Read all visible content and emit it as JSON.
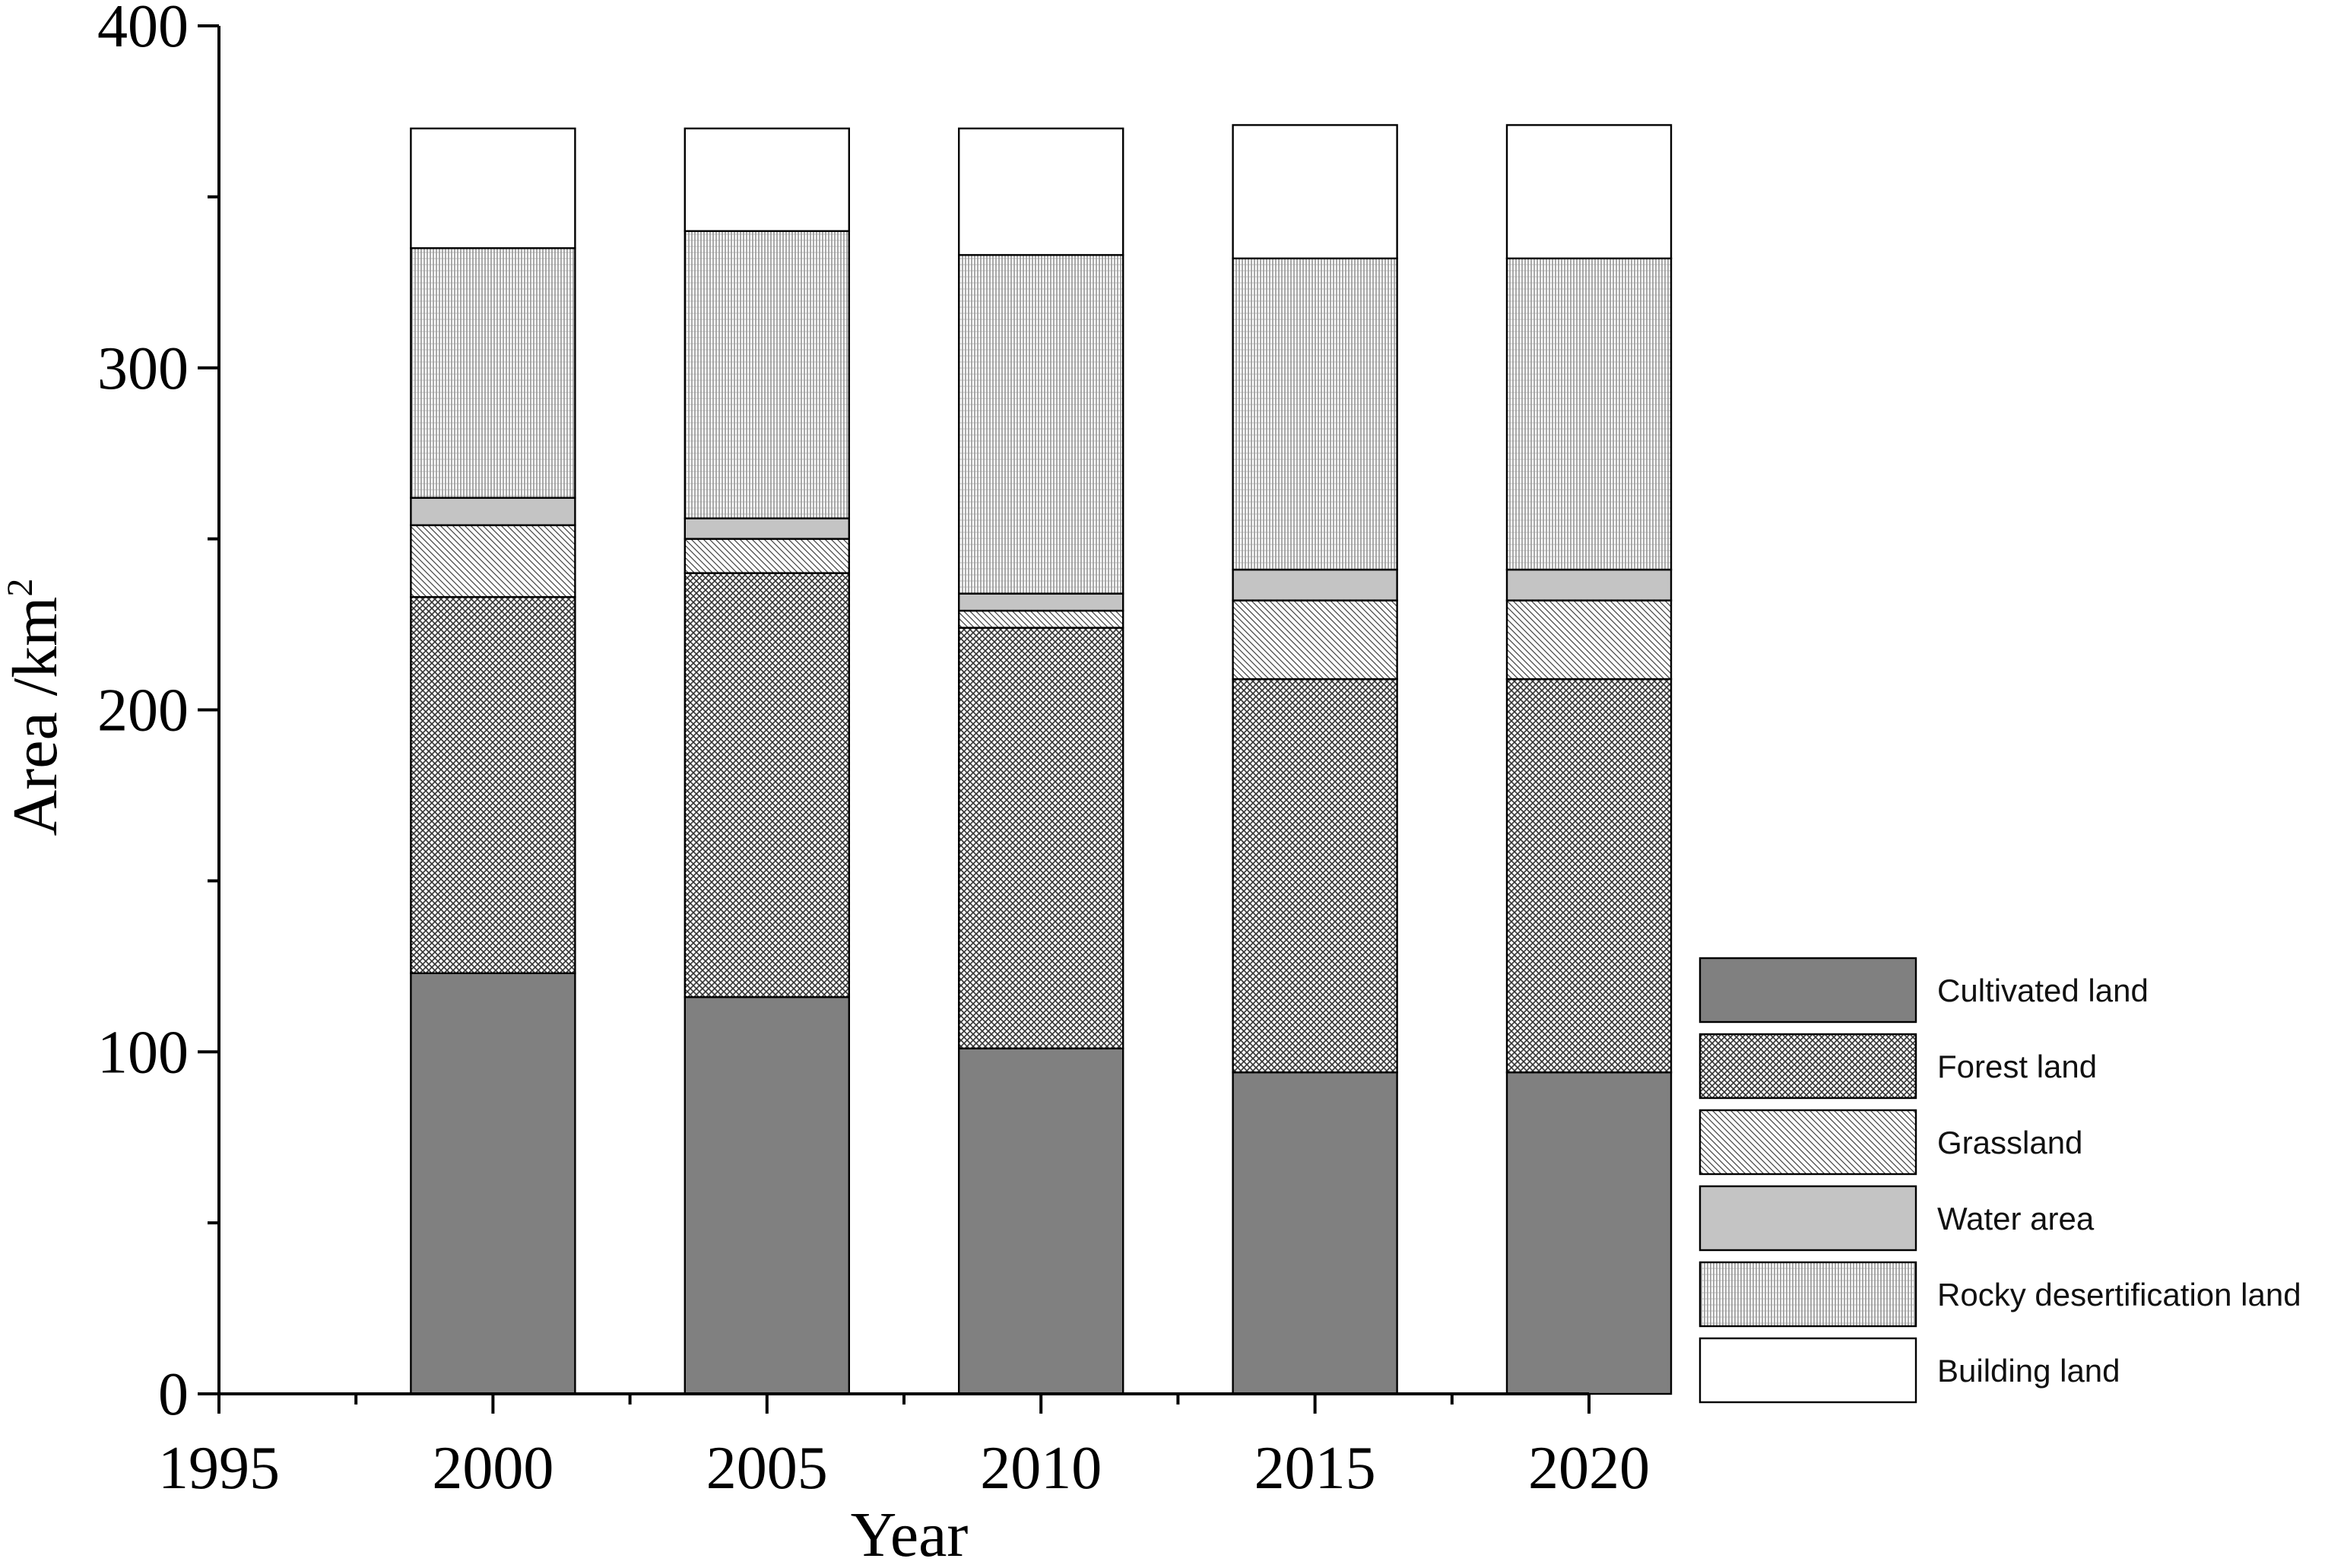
{
  "chart_data": {
    "type": "bar",
    "stacked": true,
    "xlabel": "Year",
    "ylabel": "Area /km²",
    "ylabel_main": "Area /km",
    "ylabel_sup": "2",
    "xlim": [
      1995,
      2020
    ],
    "ylim": [
      0,
      400
    ],
    "x_ticks": [
      "1995",
      "2000",
      "2005",
      "2010",
      "2015",
      "2020"
    ],
    "y_ticks": [
      "0",
      "100",
      "200",
      "300",
      "400"
    ],
    "categories": [
      "2000",
      "2005",
      "2010",
      "2015",
      "2020"
    ],
    "legend_position": "bottom-right",
    "grid": false,
    "series": [
      {
        "name": "Cultivated land",
        "pattern": "solid",
        "color": "#808080",
        "values": [
          123,
          116,
          101,
          94,
          94
        ]
      },
      {
        "name": "Forest land",
        "pattern": "crosshatch",
        "color": "#ffffff",
        "values": [
          110,
          124,
          123,
          115,
          115
        ]
      },
      {
        "name": "Grassland",
        "pattern": "diagonal",
        "color": "#ffffff",
        "values": [
          21,
          10,
          5,
          23,
          23
        ]
      },
      {
        "name": "Water area",
        "pattern": "solid",
        "color": "#c4c4c4",
        "values": [
          8,
          6,
          5,
          9,
          9
        ]
      },
      {
        "name": "Rocky desertification land",
        "pattern": "vertical",
        "color": "#ffffff",
        "values": [
          73,
          84,
          99,
          91,
          91
        ]
      },
      {
        "name": "Building land",
        "pattern": "none",
        "color": "#ffffff",
        "values": [
          35,
          30,
          37,
          39,
          39
        ]
      }
    ]
  }
}
